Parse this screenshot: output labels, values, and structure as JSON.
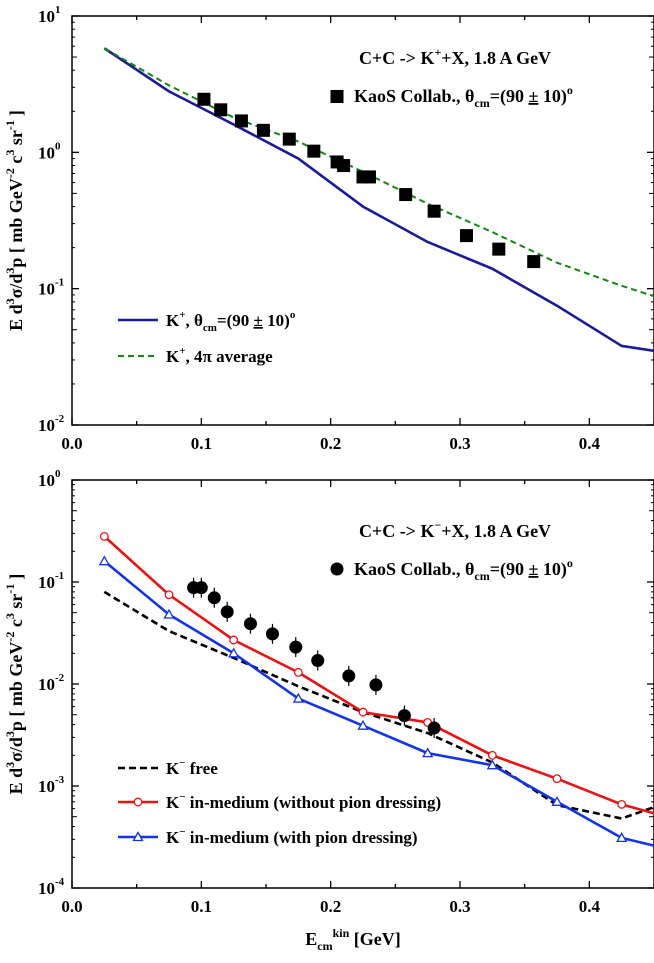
{
  "chart_data": [
    {
      "type": "line",
      "title": "C+C -> K+X, 1.8 A GeV",
      "title_parts": {
        "pre": "C+C -> K",
        "sup": "+",
        "post": "+X,  1.8 A GeV"
      },
      "y_scale": "log",
      "xlim": [
        0.0,
        0.45
      ],
      "ylim": [
        0.01,
        10
      ],
      "x_ticks": [
        "0.0",
        "0.1",
        "0.2",
        "0.3",
        "0.4"
      ],
      "x_tick_values": [
        0.0,
        0.1,
        0.2,
        0.3,
        0.4
      ],
      "y_ticks": [
        {
          "value": 10,
          "base": "10",
          "exp": "1"
        },
        {
          "value": 1,
          "base": "10",
          "exp": "0"
        },
        {
          "value": 0.1,
          "base": "10",
          "exp": "-1"
        },
        {
          "value": 0.01,
          "base": "10",
          "exp": "-2"
        }
      ],
      "ylabel": "E d3σ/d3p [ mb GeV-2 c3 sr-1 ]",
      "ylabel_parts": {
        "a": "E d",
        "a_sup": "3",
        "b": "σ/d",
        "b_sup": "3",
        "c": "p  [ mb GeV",
        "c_sup": "-2",
        "d": " c",
        "d_sup": "3",
        "e": " sr",
        "e_sup": "-1",
        "f": "]"
      },
      "series": [
        {
          "name": "K+, θcm=(90 ± 10)o",
          "legend": {
            "pre": "K",
            "sup": "+",
            "mid": ", θ",
            "sub": "cm",
            "post": "=(90 ",
            "pm": "±",
            "post2": " 10)",
            "sup2": "o"
          },
          "style": "solid",
          "color": "#1a1a9a",
          "x": [
            0.025,
            0.075,
            0.125,
            0.175,
            0.225,
            0.275,
            0.325,
            0.375,
            0.425,
            0.45
          ],
          "y": [
            5.8,
            2.8,
            1.6,
            0.9,
            0.4,
            0.22,
            0.14,
            0.075,
            0.038,
            0.035
          ]
        },
        {
          "name": "K+, 4π average",
          "legend": {
            "pre": "K",
            "sup": "+",
            "post": ", 4π  average"
          },
          "style": "dashed",
          "color": "#118811",
          "x": [
            0.025,
            0.075,
            0.125,
            0.175,
            0.225,
            0.275,
            0.325,
            0.375,
            0.425,
            0.45
          ],
          "y": [
            5.8,
            3.1,
            1.8,
            1.2,
            0.72,
            0.42,
            0.26,
            0.155,
            0.105,
            0.088
          ]
        },
        {
          "name": "KaoS Collab., θcm=(90 ± 10)o",
          "legend": {
            "pre": "KaoS Collab., θ",
            "sub": "cm",
            "post": "=(90 ",
            "pm": "±",
            "post2": " 10)",
            "sup2": "o"
          },
          "style": "square-marker",
          "color": "#000000",
          "x": [
            0.102,
            0.115,
            0.131,
            0.148,
            0.168,
            0.187,
            0.205,
            0.21,
            0.225,
            0.23,
            0.258,
            0.28,
            0.305,
            0.33,
            0.357
          ],
          "y": [
            2.45,
            2.05,
            1.7,
            1.45,
            1.25,
            1.02,
            0.85,
            0.8,
            0.66,
            0.66,
            0.49,
            0.37,
            0.245,
            0.195,
            0.158
          ]
        }
      ]
    },
    {
      "type": "line",
      "title": "C+C -> K-X, 1.8 A GeV",
      "title_parts": {
        "pre": "C+C -> K",
        "sup": "−",
        "post": "+X,  1.8 A GeV"
      },
      "y_scale": "log",
      "xlim": [
        0.0,
        0.45
      ],
      "ylim": [
        0.0001,
        1
      ],
      "x_ticks": [
        "0.0",
        "0.1",
        "0.2",
        "0.3",
        "0.4"
      ],
      "x_tick_values": [
        0.0,
        0.1,
        0.2,
        0.3,
        0.4
      ],
      "y_ticks": [
        {
          "value": 1,
          "base": "10",
          "exp": "0"
        },
        {
          "value": 0.1,
          "base": "10",
          "exp": "-1"
        },
        {
          "value": 0.01,
          "base": "10",
          "exp": "-2"
        },
        {
          "value": 0.001,
          "base": "10",
          "exp": "-3"
        },
        {
          "value": 0.0001,
          "base": "10",
          "exp": "-4"
        }
      ],
      "xlabel": "Ecm kin [GeV]",
      "xlabel_parts": {
        "a": "E",
        "sub": "cm",
        "sup": "kin",
        "b": " [GeV]"
      },
      "ylabel": "E d3σ/d3p [ mb GeV-2 c3 sr-1 ]",
      "ylabel_parts": {
        "a": "E d",
        "a_sup": "3",
        "b": "σ/d",
        "b_sup": "3",
        "c": "p  [ mb GeV",
        "c_sup": "-2",
        "d": " c",
        "d_sup": "3",
        "e": " sr",
        "e_sup": "-1",
        "f": "]"
      },
      "series": [
        {
          "name": "K- free",
          "legend": {
            "pre": "K",
            "sup": "−",
            "post": " free"
          },
          "style": "dashed-black",
          "color": "#000000",
          "x": [
            0.025,
            0.075,
            0.125,
            0.175,
            0.225,
            0.275,
            0.325,
            0.375,
            0.425,
            0.45
          ],
          "y": [
            0.08,
            0.033,
            0.018,
            0.0095,
            0.0053,
            0.0033,
            0.0017,
            0.00065,
            0.00048,
            0.00062
          ]
        },
        {
          "name": "K- in-medium (without pion dressing)",
          "legend": {
            "pre": "K",
            "sup": "−",
            "post": " in-medium (without pion dressing)"
          },
          "style": "red-circle",
          "color": "#ee1111",
          "x": [
            0.025,
            0.075,
            0.125,
            0.175,
            0.225,
            0.275,
            0.325,
            0.375,
            0.425,
            0.45
          ],
          "y": [
            0.28,
            0.075,
            0.027,
            0.013,
            0.0053,
            0.0042,
            0.002,
            0.00118,
            0.00066,
            0.00054
          ]
        },
        {
          "name": "K- in-medium (with pion dressing)",
          "legend": {
            "pre": "K",
            "sup": "−",
            "post": " in-medium (with pion dressing)"
          },
          "style": "blue-triangle",
          "color": "#1133ee",
          "x": [
            0.025,
            0.075,
            0.125,
            0.175,
            0.225,
            0.275,
            0.325,
            0.375,
            0.425,
            0.45
          ],
          "y": [
            0.16,
            0.048,
            0.02,
            0.0072,
            0.0039,
            0.0021,
            0.0016,
            0.0007,
            0.00031,
            0.00026
          ]
        },
        {
          "name": "KaoS Collab., θcm=(90 ± 10)o",
          "legend": {
            "pre": "KaoS Collab., θ",
            "sub": "cm",
            "post": "=(90 ",
            "pm": "±",
            "post2": " 10)",
            "sup2": "o"
          },
          "style": "circle-marker",
          "color": "#000000",
          "x": [
            0.094,
            0.1,
            0.11,
            0.12,
            0.138,
            0.155,
            0.173,
            0.19,
            0.214,
            0.235,
            0.257,
            0.28
          ],
          "y": [
            0.088,
            0.088,
            0.07,
            0.051,
            0.039,
            0.031,
            0.023,
            0.017,
            0.012,
            0.0098,
            0.0049,
            0.0037
          ]
        }
      ]
    }
  ]
}
